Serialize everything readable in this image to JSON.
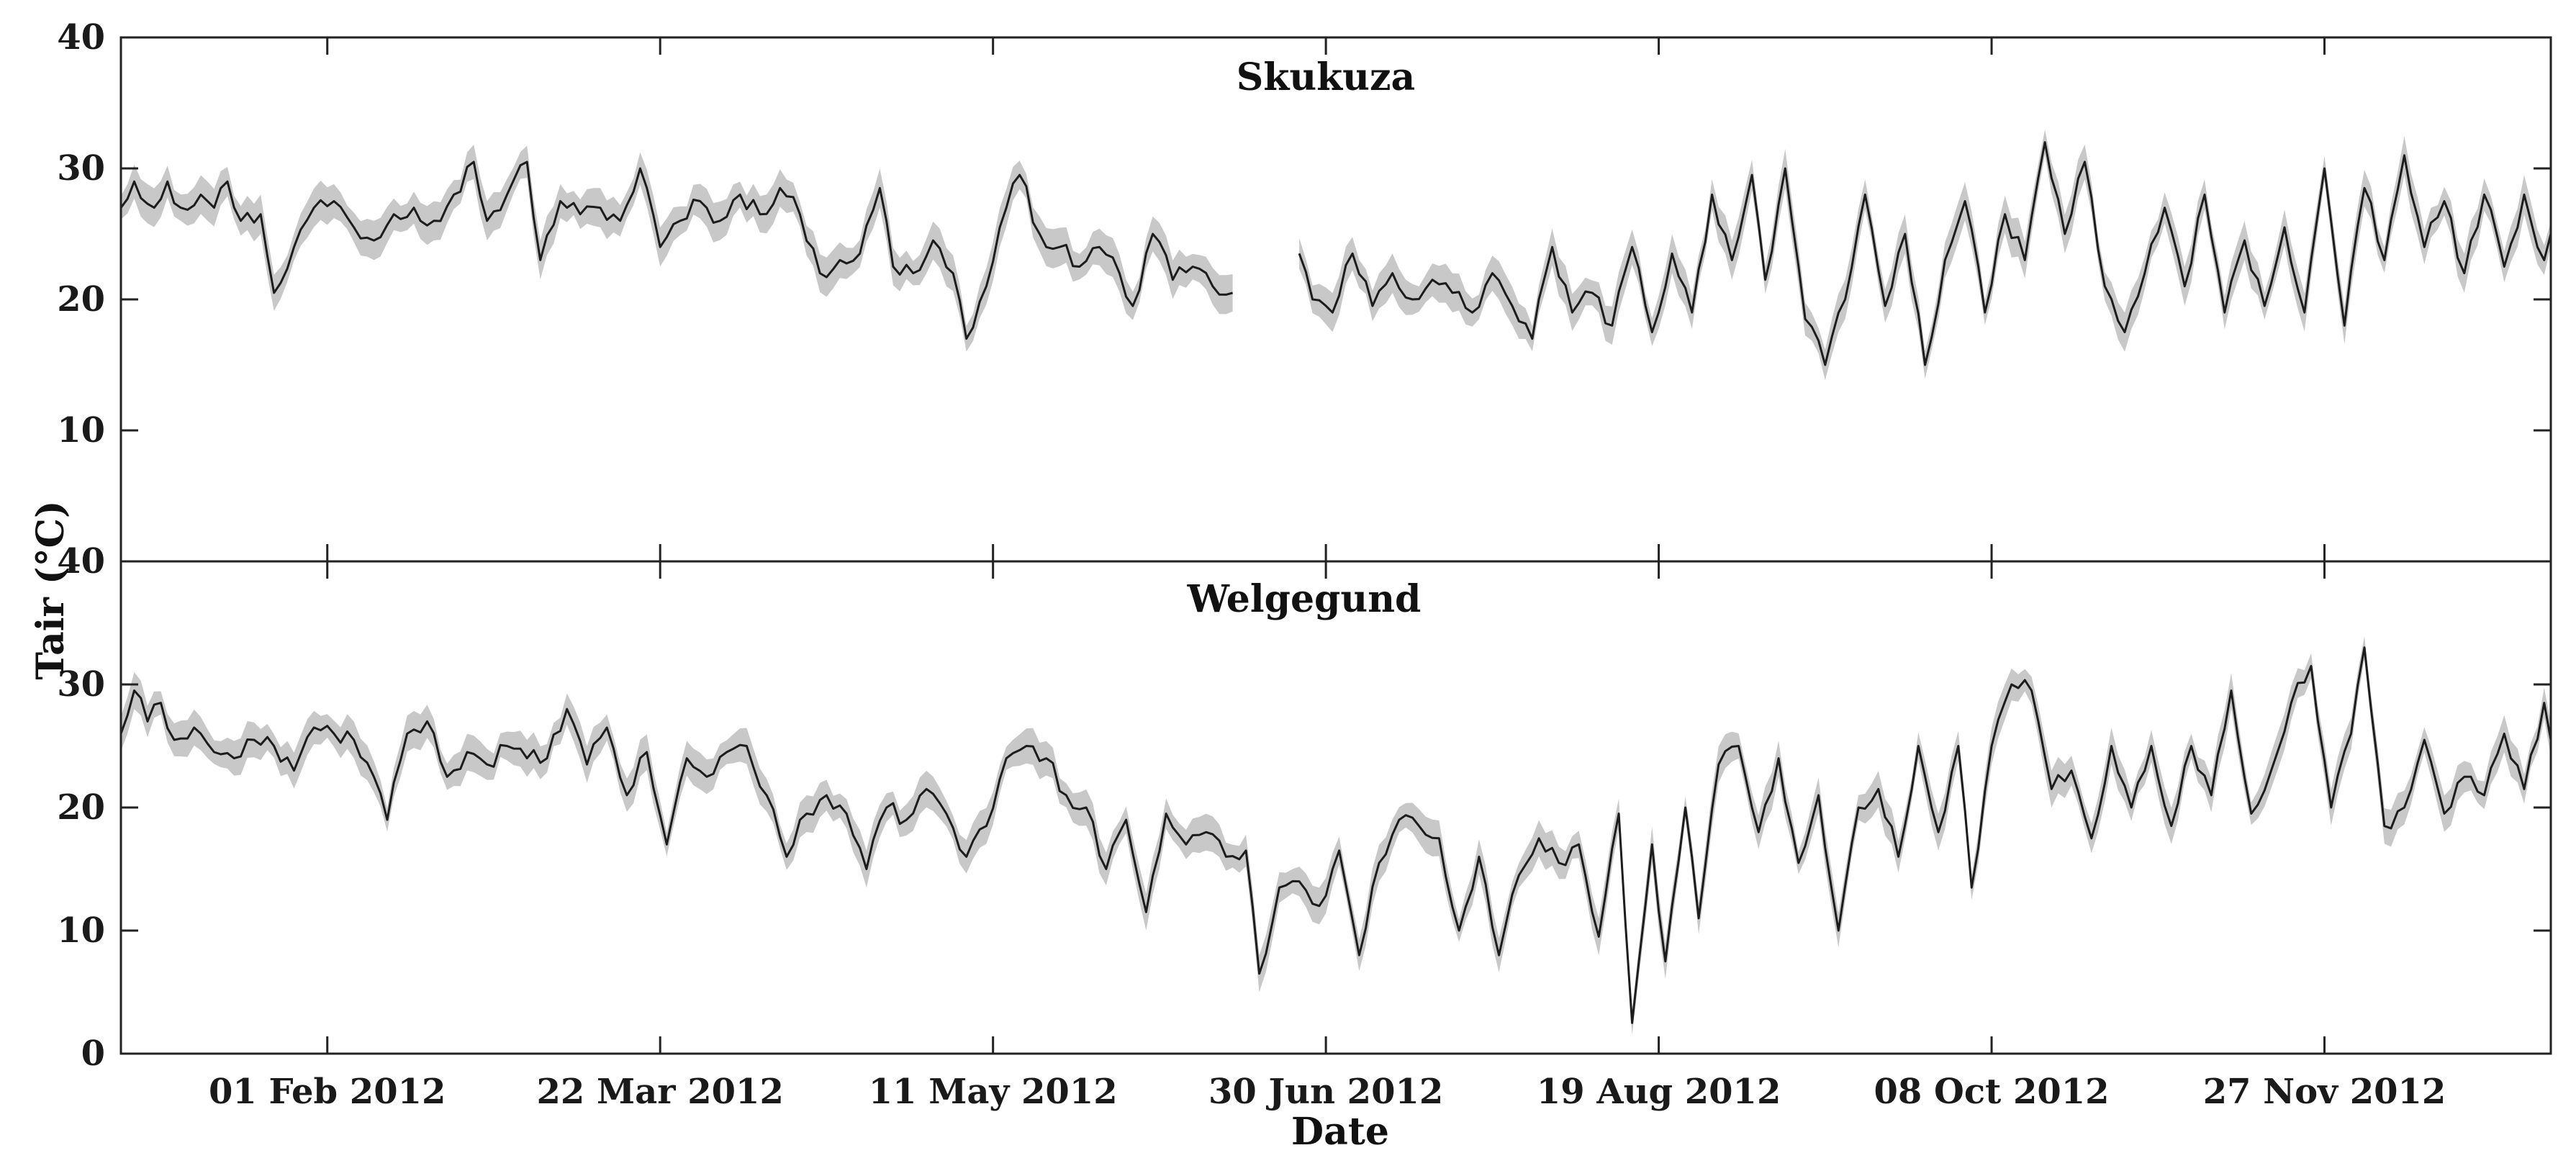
{
  "chart_data": {
    "type": "line",
    "xlabel": "Date",
    "ylabel": "Tair (°C)",
    "xlim": [
      "2012-01-01",
      "2012-12-31"
    ],
    "x_ticks": [
      "01 Feb 2012",
      "22 Mar 2012",
      "11 May 2012",
      "30 Jun 2012",
      "19 Aug 2012",
      "08 Oct 2012",
      "27 Nov 2012"
    ],
    "x_tick_dates": [
      "2012-02-01",
      "2012-03-22",
      "2012-05-11",
      "2012-06-30",
      "2012-08-19",
      "2012-10-08",
      "2012-11-27"
    ],
    "band_color": "#c8c8c8",
    "line_color": "#1c1c1c",
    "grid": false,
    "panels": [
      {
        "title": "Skukuza",
        "ylim": [
          0,
          40
        ],
        "y_ticks": [
          "10",
          "20",
          "30",
          "40"
        ],
        "y_tick_values": [
          10,
          20,
          30,
          40
        ],
        "gap": [
          "2012-06-07",
          "2012-06-17"
        ],
        "series_anchors": [
          [
            "2012-01-01",
            27
          ],
          [
            "2012-01-03",
            29
          ],
          [
            "2012-01-06",
            27
          ],
          [
            "2012-01-08",
            29
          ],
          [
            "2012-01-10",
            27
          ],
          [
            "2012-01-13",
            28
          ],
          [
            "2012-01-15",
            27
          ],
          [
            "2012-01-17",
            29
          ],
          [
            "2012-01-19",
            26
          ],
          [
            "2012-01-22",
            26.5
          ],
          [
            "2012-01-24",
            20.5
          ],
          [
            "2012-01-27",
            24
          ],
          [
            "2012-01-30",
            27
          ],
          [
            "2012-02-02",
            27.5
          ],
          [
            "2012-02-05",
            25.5
          ],
          [
            "2012-02-08",
            24.5
          ],
          [
            "2012-02-11",
            26.5
          ],
          [
            "2012-02-14",
            27
          ],
          [
            "2012-02-17",
            26
          ],
          [
            "2012-02-20",
            28
          ],
          [
            "2012-02-23",
            30.5
          ],
          [
            "2012-02-25",
            26
          ],
          [
            "2012-02-28",
            28
          ],
          [
            "2012-03-02",
            30.5
          ],
          [
            "2012-03-04",
            23
          ],
          [
            "2012-03-07",
            27.5
          ],
          [
            "2012-03-10",
            26.5
          ],
          [
            "2012-03-13",
            27
          ],
          [
            "2012-03-16",
            26
          ],
          [
            "2012-03-19",
            30
          ],
          [
            "2012-03-22",
            24
          ],
          [
            "2012-03-25",
            26
          ],
          [
            "2012-03-28",
            27.5
          ],
          [
            "2012-03-31",
            26
          ],
          [
            "2012-04-03",
            28
          ],
          [
            "2012-04-06",
            26.5
          ],
          [
            "2012-04-09",
            28.5
          ],
          [
            "2012-04-12",
            26.5
          ],
          [
            "2012-04-15",
            22
          ],
          [
            "2012-04-18",
            23
          ],
          [
            "2012-04-21",
            23.5
          ],
          [
            "2012-04-24",
            28.5
          ],
          [
            "2012-04-26",
            22.5
          ],
          [
            "2012-04-29",
            22
          ],
          [
            "2012-05-02",
            24.5
          ],
          [
            "2012-05-05",
            22
          ],
          [
            "2012-05-07",
            17
          ],
          [
            "2012-05-10",
            21
          ],
          [
            "2012-05-13",
            27
          ],
          [
            "2012-05-15",
            29.5
          ],
          [
            "2012-05-18",
            25
          ],
          [
            "2012-05-21",
            24
          ],
          [
            "2012-05-24",
            22.5
          ],
          [
            "2012-05-27",
            24
          ],
          [
            "2012-05-30",
            22
          ],
          [
            "2012-06-01",
            19.5
          ],
          [
            "2012-06-04",
            25
          ],
          [
            "2012-06-07",
            21.5
          ],
          [
            "2012-06-10",
            22.5
          ],
          [
            "2012-06-13",
            21
          ],
          [
            "2012-06-16",
            20.5
          ],
          [
            "2012-06-26",
            23.5
          ],
          [
            "2012-06-28",
            20
          ],
          [
            "2012-07-01",
            19
          ],
          [
            "2012-07-04",
            23.5
          ],
          [
            "2012-07-07",
            19.5
          ],
          [
            "2012-07-10",
            22
          ],
          [
            "2012-07-13",
            20
          ],
          [
            "2012-07-16",
            21.5
          ],
          [
            "2012-07-19",
            20.5
          ],
          [
            "2012-07-22",
            19
          ],
          [
            "2012-07-25",
            22
          ],
          [
            "2012-07-28",
            19.5
          ],
          [
            "2012-07-31",
            17
          ],
          [
            "2012-08-03",
            24
          ],
          [
            "2012-08-06",
            19
          ],
          [
            "2012-08-09",
            20.5
          ],
          [
            "2012-08-12",
            18
          ],
          [
            "2012-08-15",
            24
          ],
          [
            "2012-08-18",
            17.5
          ],
          [
            "2012-08-21",
            23.5
          ],
          [
            "2012-08-24",
            19
          ],
          [
            "2012-08-27",
            28
          ],
          [
            "2012-08-30",
            23
          ],
          [
            "2012-09-02",
            29.5
          ],
          [
            "2012-09-04",
            21.5
          ],
          [
            "2012-09-07",
            30
          ],
          [
            "2012-09-10",
            18.5
          ],
          [
            "2012-09-13",
            15
          ],
          [
            "2012-09-16",
            20
          ],
          [
            "2012-09-19",
            28
          ],
          [
            "2012-09-22",
            19.5
          ],
          [
            "2012-09-25",
            25
          ],
          [
            "2012-09-28",
            15
          ],
          [
            "2012-10-01",
            23
          ],
          [
            "2012-10-04",
            27.5
          ],
          [
            "2012-10-07",
            19
          ],
          [
            "2012-10-10",
            26.5
          ],
          [
            "2012-10-13",
            23
          ],
          [
            "2012-10-16",
            32
          ],
          [
            "2012-10-19",
            25
          ],
          [
            "2012-10-22",
            30.5
          ],
          [
            "2012-10-25",
            21
          ],
          [
            "2012-10-28",
            17.5
          ],
          [
            "2012-10-31",
            22
          ],
          [
            "2012-11-03",
            27
          ],
          [
            "2012-11-06",
            21
          ],
          [
            "2012-11-09",
            28
          ],
          [
            "2012-11-12",
            19
          ],
          [
            "2012-11-15",
            24.5
          ],
          [
            "2012-11-18",
            19.5
          ],
          [
            "2012-11-21",
            25.5
          ],
          [
            "2012-11-24",
            19
          ],
          [
            "2012-11-27",
            30
          ],
          [
            "2012-11-30",
            18
          ],
          [
            "2012-12-03",
            28.5
          ],
          [
            "2012-12-06",
            23
          ],
          [
            "2012-12-09",
            31
          ],
          [
            "2012-12-12",
            24
          ],
          [
            "2012-12-15",
            27.5
          ],
          [
            "2012-12-18",
            22
          ],
          [
            "2012-12-21",
            28
          ],
          [
            "2012-12-24",
            22.5
          ],
          [
            "2012-12-27",
            28
          ],
          [
            "2012-12-30",
            23
          ],
          [
            "2012-12-31",
            25
          ]
        ]
      },
      {
        "title": "Welgegund",
        "ylim": [
          0,
          40
        ],
        "y_ticks": [
          "0",
          "10",
          "20",
          "30",
          "40"
        ],
        "y_tick_values": [
          0,
          10,
          20,
          30,
          40
        ],
        "series_anchors": [
          [
            "2012-01-01",
            26
          ],
          [
            "2012-01-03",
            29.5
          ],
          [
            "2012-01-05",
            27
          ],
          [
            "2012-01-07",
            28.5
          ],
          [
            "2012-01-09",
            25.5
          ],
          [
            "2012-01-12",
            26.5
          ],
          [
            "2012-01-15",
            24.5
          ],
          [
            "2012-01-18",
            24
          ],
          [
            "2012-01-21",
            25.5
          ],
          [
            "2012-01-24",
            25
          ],
          [
            "2012-01-27",
            23
          ],
          [
            "2012-01-30",
            26.5
          ],
          [
            "2012-02-02",
            26
          ],
          [
            "2012-02-05",
            25.5
          ],
          [
            "2012-02-08",
            22.5
          ],
          [
            "2012-02-10",
            19
          ],
          [
            "2012-02-13",
            26
          ],
          [
            "2012-02-16",
            27
          ],
          [
            "2012-02-19",
            22.5
          ],
          [
            "2012-02-22",
            24.5
          ],
          [
            "2012-02-25",
            23.5
          ],
          [
            "2012-02-28",
            25
          ],
          [
            "2012-03-02",
            24
          ],
          [
            "2012-03-05",
            24
          ],
          [
            "2012-03-08",
            28
          ],
          [
            "2012-03-11",
            23.5
          ],
          [
            "2012-03-14",
            26.5
          ],
          [
            "2012-03-17",
            21
          ],
          [
            "2012-03-20",
            24.5
          ],
          [
            "2012-03-23",
            17
          ],
          [
            "2012-03-26",
            24
          ],
          [
            "2012-03-29",
            22.5
          ],
          [
            "2012-04-01",
            24.5
          ],
          [
            "2012-04-04",
            25
          ],
          [
            "2012-04-07",
            21
          ],
          [
            "2012-04-10",
            16
          ],
          [
            "2012-04-13",
            19.5
          ],
          [
            "2012-04-16",
            21
          ],
          [
            "2012-04-19",
            19.5
          ],
          [
            "2012-04-22",
            15
          ],
          [
            "2012-04-25",
            20
          ],
          [
            "2012-04-28",
            19
          ],
          [
            "2012-05-01",
            21.5
          ],
          [
            "2012-05-04",
            19.5
          ],
          [
            "2012-05-07",
            16
          ],
          [
            "2012-05-10",
            18.5
          ],
          [
            "2012-05-13",
            24
          ],
          [
            "2012-05-16",
            25
          ],
          [
            "2012-05-19",
            24
          ],
          [
            "2012-05-22",
            21
          ],
          [
            "2012-05-25",
            20
          ],
          [
            "2012-05-28",
            15
          ],
          [
            "2012-05-31",
            19
          ],
          [
            "2012-06-03",
            11.5
          ],
          [
            "2012-06-06",
            19.5
          ],
          [
            "2012-06-09",
            17
          ],
          [
            "2012-06-12",
            18
          ],
          [
            "2012-06-15",
            16
          ],
          [
            "2012-06-18",
            16.5
          ],
          [
            "2012-06-20",
            6.5
          ],
          [
            "2012-06-23",
            13.5
          ],
          [
            "2012-06-26",
            14
          ],
          [
            "2012-06-29",
            12
          ],
          [
            "2012-07-02",
            16.5
          ],
          [
            "2012-07-05",
            8
          ],
          [
            "2012-07-08",
            15.5
          ],
          [
            "2012-07-11",
            19
          ],
          [
            "2012-07-14",
            18.5
          ],
          [
            "2012-07-17",
            17.5
          ],
          [
            "2012-07-20",
            10
          ],
          [
            "2012-07-23",
            16
          ],
          [
            "2012-07-26",
            8
          ],
          [
            "2012-07-29",
            14.5
          ],
          [
            "2012-08-01",
            17.5
          ],
          [
            "2012-08-04",
            15.5
          ],
          [
            "2012-08-07",
            17
          ],
          [
            "2012-08-10",
            9.5
          ],
          [
            "2012-08-13",
            19.5
          ],
          [
            "2012-08-15",
            2.5
          ],
          [
            "2012-08-18",
            17
          ],
          [
            "2012-08-20",
            7.5
          ],
          [
            "2012-08-23",
            20
          ],
          [
            "2012-08-25",
            11
          ],
          [
            "2012-08-28",
            23.5
          ],
          [
            "2012-08-31",
            25
          ],
          [
            "2012-09-03",
            18
          ],
          [
            "2012-09-06",
            24
          ],
          [
            "2012-09-09",
            15.5
          ],
          [
            "2012-09-12",
            21
          ],
          [
            "2012-09-15",
            10
          ],
          [
            "2012-09-18",
            20
          ],
          [
            "2012-09-21",
            21.5
          ],
          [
            "2012-09-24",
            16
          ],
          [
            "2012-09-27",
            25
          ],
          [
            "2012-09-30",
            18
          ],
          [
            "2012-10-03",
            25
          ],
          [
            "2012-10-05",
            13.5
          ],
          [
            "2012-10-08",
            25
          ],
          [
            "2012-10-11",
            30
          ],
          [
            "2012-10-14",
            29.5
          ],
          [
            "2012-10-17",
            21.5
          ],
          [
            "2012-10-20",
            23
          ],
          [
            "2012-10-23",
            17.5
          ],
          [
            "2012-10-26",
            25
          ],
          [
            "2012-10-29",
            20
          ],
          [
            "2012-11-01",
            25
          ],
          [
            "2012-11-04",
            18.5
          ],
          [
            "2012-11-07",
            25
          ],
          [
            "2012-11-10",
            21
          ],
          [
            "2012-11-13",
            29.5
          ],
          [
            "2012-11-16",
            19.5
          ],
          [
            "2012-11-19",
            23
          ],
          [
            "2012-11-22",
            28.5
          ],
          [
            "2012-11-25",
            31.5
          ],
          [
            "2012-11-28",
            20
          ],
          [
            "2012-12-01",
            26
          ],
          [
            "2012-12-03",
            33
          ],
          [
            "2012-12-06",
            18.5
          ],
          [
            "2012-12-09",
            20
          ],
          [
            "2012-12-12",
            25.5
          ],
          [
            "2012-12-15",
            19.5
          ],
          [
            "2012-12-18",
            22.5
          ],
          [
            "2012-12-21",
            21
          ],
          [
            "2012-12-24",
            26
          ],
          [
            "2012-12-27",
            21.5
          ],
          [
            "2012-12-30",
            28.5
          ],
          [
            "2012-12-31",
            25.5
          ]
        ]
      }
    ]
  }
}
